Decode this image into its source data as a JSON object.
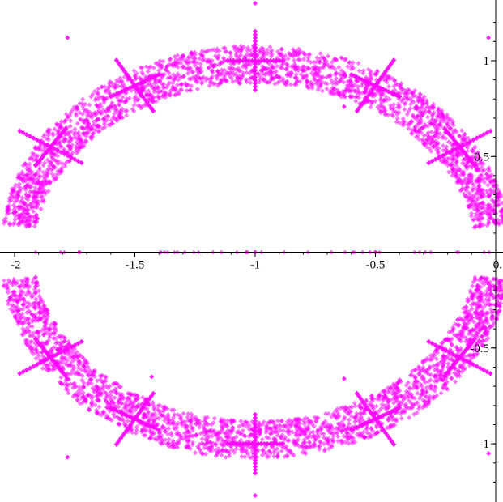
{
  "chart_data": {
    "type": "scatter",
    "title": "",
    "xlabel": "",
    "ylabel": "",
    "xlim": [
      -2.0,
      0.0
    ],
    "ylim": [
      -1.27,
      1.3
    ],
    "x_tick_labels": [
      "-2",
      "-1.5",
      "-1",
      "-0.5",
      "0."
    ],
    "x_tick_values": [
      -2,
      -1.5,
      -1,
      -0.5,
      0
    ],
    "y_tick_labels": [
      "1",
      "0.5",
      "-0.5",
      "-1"
    ],
    "y_tick_values": [
      1,
      0.5,
      -0.5,
      -1
    ],
    "grid": false,
    "legend": "none",
    "marker": "diamond",
    "colors": {
      "points": "#ff00ff",
      "axis": "#000000"
    },
    "series": [
      {
        "shape": "ellipse-band",
        "center": [
          -1.0,
          0.0
        ],
        "radius_x": 0.99,
        "radius_y": 1.0,
        "band_width": 0.1,
        "gap_near_real_axis": 0.14,
        "points": [
          [
            -1.0,
            1.0
          ],
          [
            -1.0,
            -1.0
          ],
          [
            -1.5,
            0.87
          ],
          [
            -1.5,
            -0.87
          ],
          [
            -1.85,
            0.55
          ],
          [
            -1.85,
            -0.55
          ],
          [
            -0.5,
            0.87
          ],
          [
            -0.5,
            -0.87
          ],
          [
            -0.15,
            0.55
          ],
          [
            -0.15,
            -0.55
          ],
          [
            -1.98,
            0.18
          ],
          [
            -1.98,
            -0.18
          ],
          [
            -0.02,
            0.18
          ],
          [
            -0.02,
            -0.18
          ],
          [
            -1.0,
            1.3
          ],
          [
            -1.0,
            -1.27
          ],
          [
            -1.78,
            1.12
          ],
          [
            -1.78,
            -1.07
          ],
          [
            -0.03,
            1.12
          ],
          [
            -0.03,
            -1.05
          ],
          [
            -1.43,
            0.75
          ],
          [
            -1.43,
            -0.65
          ],
          [
            -0.63,
            0.76
          ],
          [
            -0.63,
            -0.66
          ],
          [
            -0.5,
            0.0
          ],
          [
            -1.0,
            0.0
          ]
        ]
      }
    ]
  }
}
